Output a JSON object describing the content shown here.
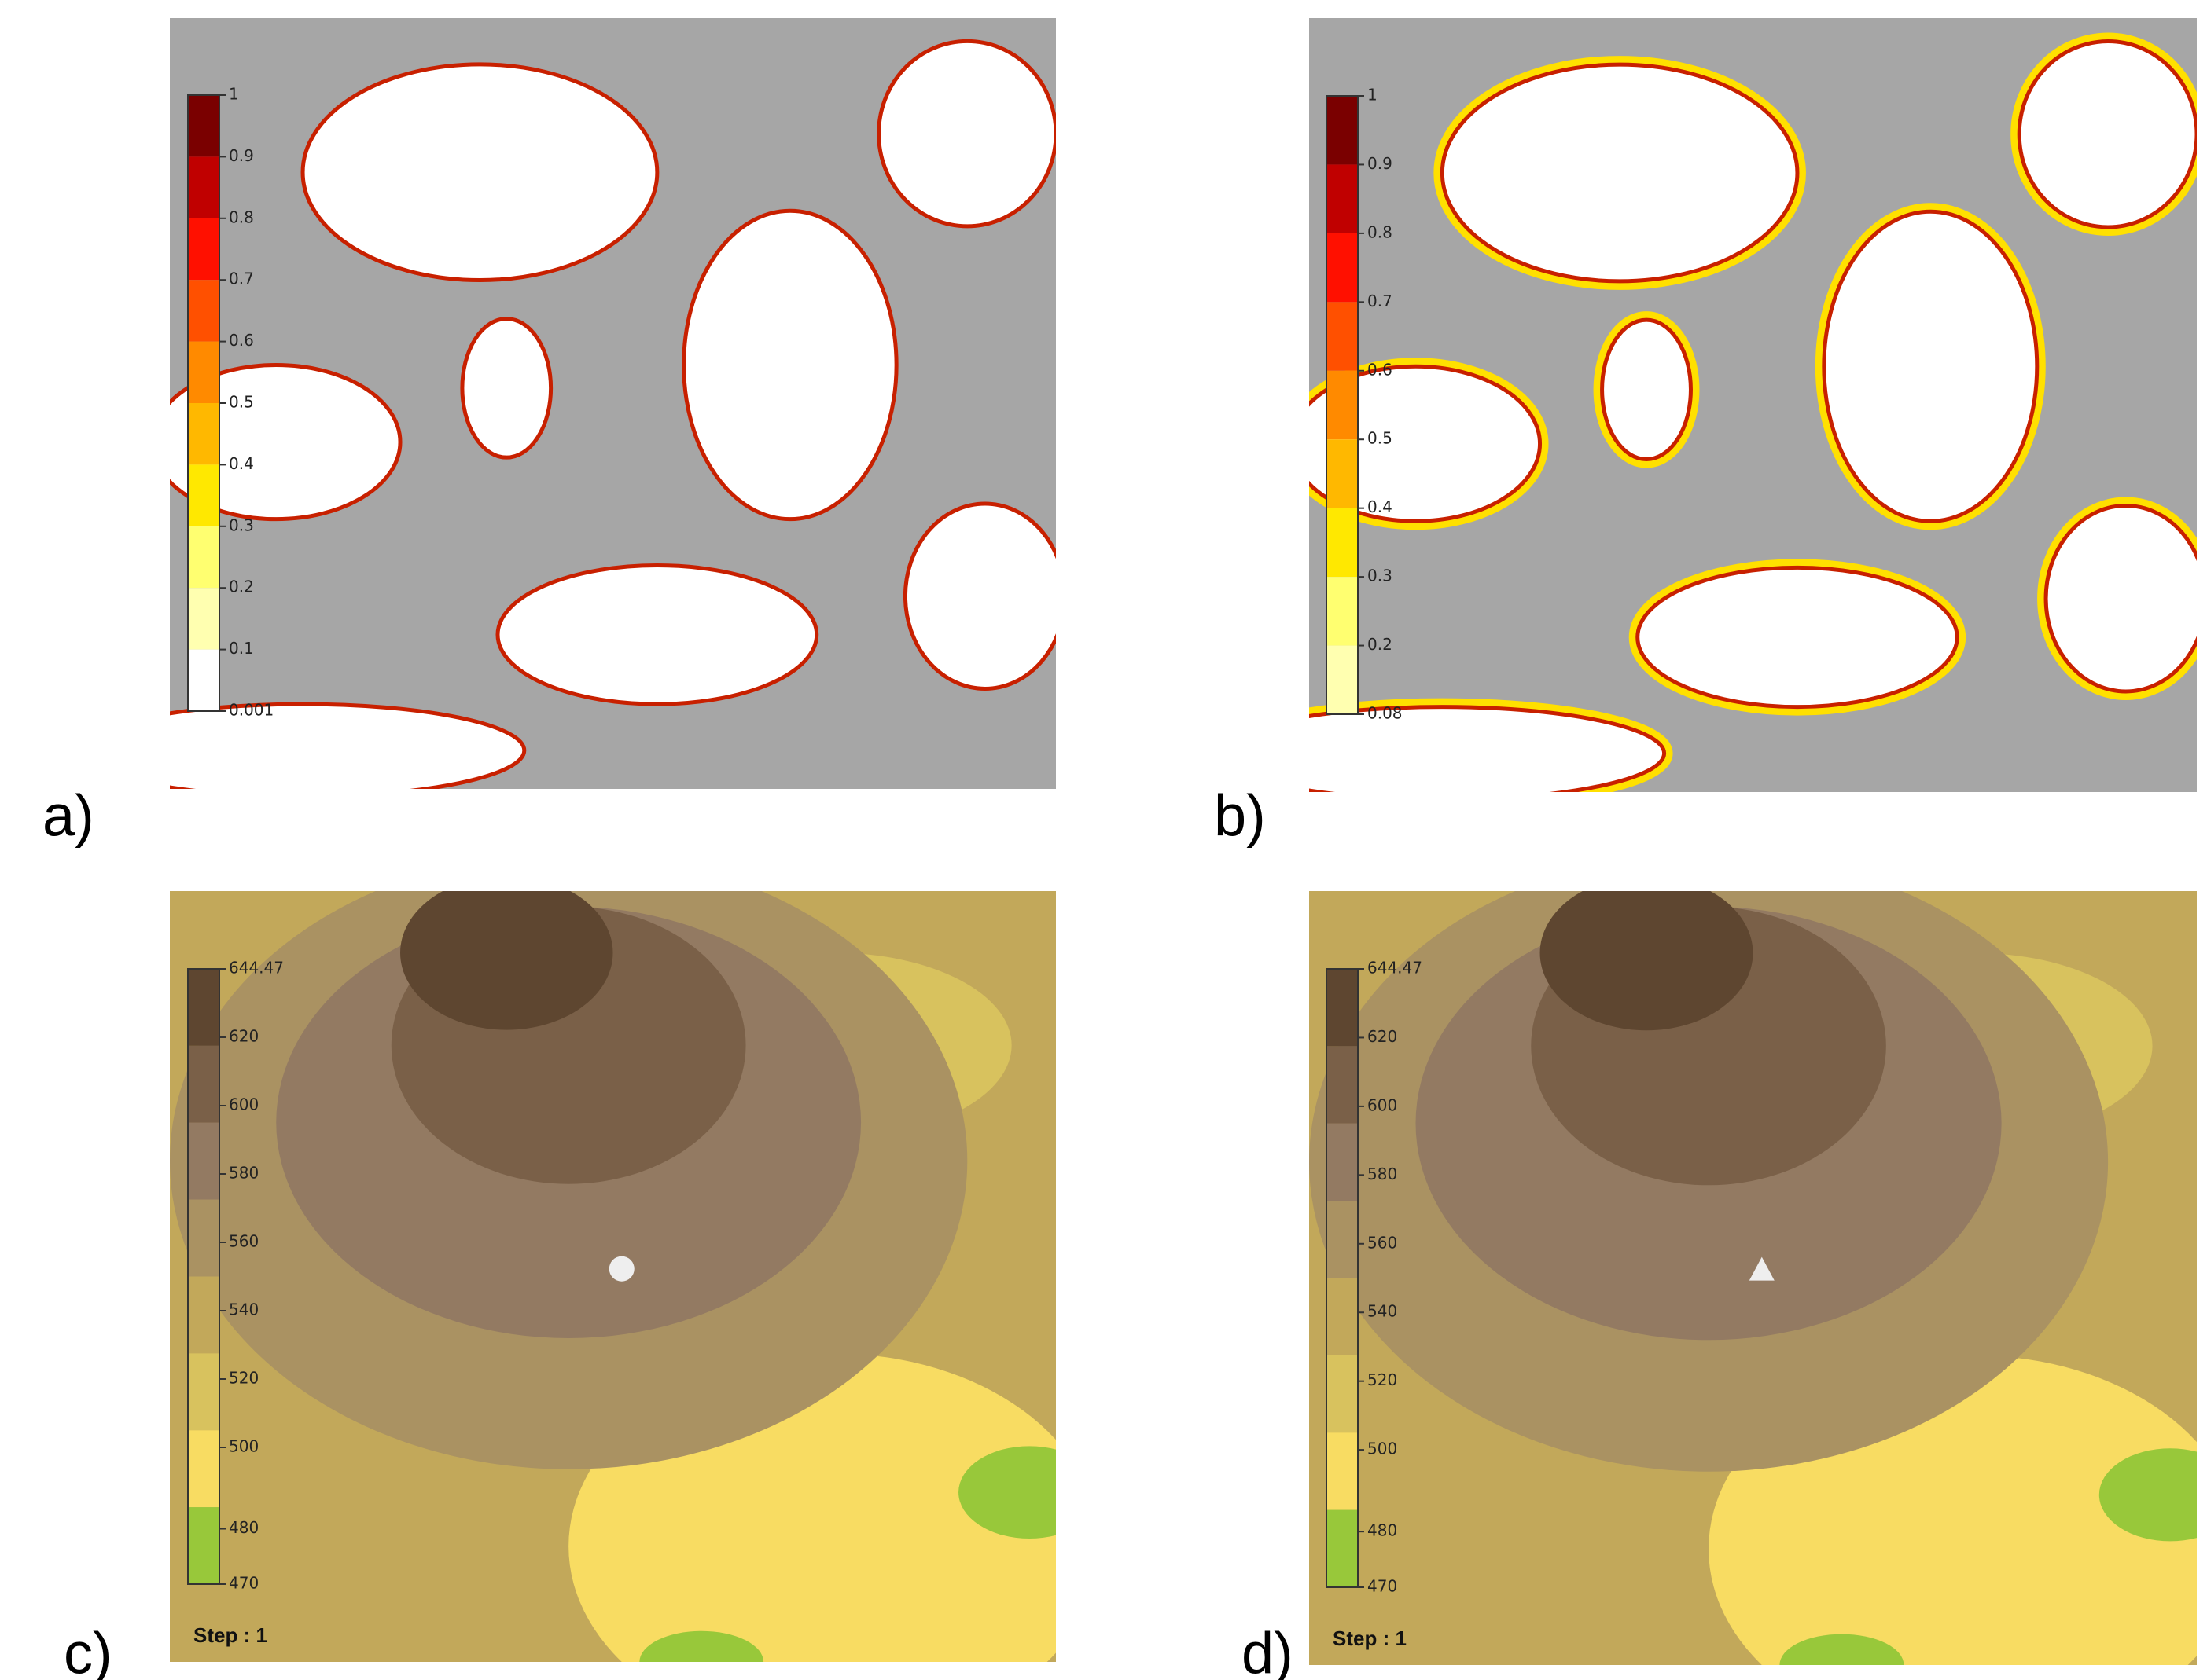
{
  "panels": [
    {
      "label": "a)",
      "legend": {
        "ticks": [
          "1",
          "0.9",
          "0.8",
          "0.7",
          "0.6",
          "0.5",
          "0.4",
          "0.3",
          "0.2",
          "0.1",
          "0.001"
        ]
      }
    },
    {
      "label": "b)",
      "legend": {
        "ticks": [
          "1",
          "0.9",
          "0.8",
          "0.7",
          "0.6",
          "0.5",
          "0.4",
          "0.3",
          "0.2",
          "0.08"
        ]
      }
    },
    {
      "label": "c)",
      "legend": {
        "ticks": [
          "644.47",
          "620",
          "600",
          "580",
          "560",
          "540",
          "520",
          "500",
          "480",
          "470"
        ]
      },
      "step": "Step : 1"
    },
    {
      "label": "d)",
      "legend": {
        "ticks": [
          "644.47",
          "620",
          "600",
          "580",
          "560",
          "540",
          "520",
          "500",
          "480",
          "470"
        ]
      },
      "step": "Step : 1"
    }
  ]
}
